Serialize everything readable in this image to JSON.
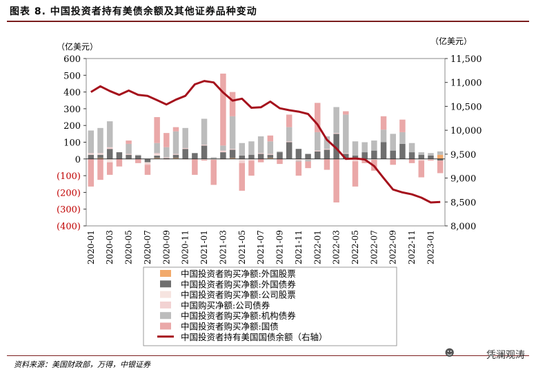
{
  "header": {
    "title": "图表 8. 中国投资者持有美债余额及其他证券品种变动"
  },
  "footer": {
    "source": "资料来源：美国财政部，万得，中银证券",
    "watermark": "凭澜观涛"
  },
  "colors": {
    "foreign_equity": "#f2a96b",
    "foreign_bonds": "#6f6f6f",
    "corp_equity": "#f6e4e0",
    "corp_bonds": "#f2d2d2",
    "agency_bonds": "#bcbcbc",
    "treasury": "#eaa8a8",
    "holdings_line": "#a5111c",
    "axis_frame": "#888888",
    "negative_tick": "#c00000"
  },
  "chart_data": {
    "type": "bar",
    "subtype": "stacked bar with line on secondary axis",
    "left_axis_unit": "（亿美元）",
    "right_axis_unit": "（亿美元）",
    "left_ylim": [
      -400,
      600
    ],
    "left_ticks": [
      "600",
      "500",
      "400",
      "300",
      "200",
      "100",
      "0",
      "(100)",
      "(200)",
      "(300)",
      "(400)"
    ],
    "left_tick_values": [
      600,
      500,
      400,
      300,
      200,
      100,
      0,
      -100,
      -200,
      -300,
      -400
    ],
    "right_ylim": [
      8000,
      11500
    ],
    "right_ticks": [
      "11,500",
      "11,000",
      "10,500",
      "10,000",
      "9,500",
      "9,000",
      "8,500",
      "8,000"
    ],
    "right_tick_values": [
      11500,
      11000,
      10500,
      10000,
      9500,
      9000,
      8500,
      8000
    ],
    "categories": [
      "2020-01",
      "2020-02",
      "2020-03",
      "2020-04",
      "2020-05",
      "2020-06",
      "2020-07",
      "2020-08",
      "2020-09",
      "2020-10",
      "2020-11",
      "2020-12",
      "2021-01",
      "2021-02",
      "2021-03",
      "2021-04",
      "2021-05",
      "2021-06",
      "2021-07",
      "2021-08",
      "2021-09",
      "2021-10",
      "2021-11",
      "2021-12",
      "2022-01",
      "2022-02",
      "2022-03",
      "2022-04",
      "2022-05",
      "2022-06",
      "2022-07",
      "2022-08",
      "2022-09",
      "2022-10",
      "2022-11",
      "2022-12",
      "2023-01",
      "2023-02"
    ],
    "x_tick_labels": [
      "2020-01",
      "2020-03",
      "2020-05",
      "2020-07",
      "2020-09",
      "2020-11",
      "2021-01",
      "2021-03",
      "2021-05",
      "2021-07",
      "2021-09",
      "2021-11",
      "2022-01",
      "2022-03",
      "2022-05",
      "2022-07",
      "2022-09",
      "2022-11",
      "2023-01"
    ],
    "legend": [
      "中国投资者购买净额:外国股票",
      "中国投资者购买净额:外国债券",
      "中国投资者购买净额:公司股票",
      "中国购买净额:公司债券",
      "中国投资者购买净额:机构债券",
      "中国投资者购买净额:国债",
      "中国投资者持有美国国债余额（右轴）"
    ],
    "series": [
      {
        "name": "中国投资者购买净额:外国股票",
        "key": "foreign_equity",
        "axis": "left",
        "values": [
          0,
          5,
          0,
          0,
          0,
          0,
          0,
          5,
          0,
          5,
          0,
          0,
          0,
          0,
          0,
          5,
          0,
          0,
          0,
          5,
          0,
          0,
          0,
          0,
          0,
          0,
          0,
          0,
          0,
          0,
          0,
          0,
          0,
          0,
          0,
          0,
          0,
          25
        ]
      },
      {
        "name": "中国投资者购买净额:外国债券",
        "key": "foreign_bonds",
        "axis": "left",
        "values": [
          25,
          20,
          60,
          40,
          25,
          20,
          -20,
          15,
          5,
          20,
          60,
          35,
          80,
          0,
          40,
          50,
          20,
          25,
          30,
          20,
          40,
          100,
          60,
          30,
          45,
          55,
          150,
          30,
          20,
          40,
          50,
          100,
          50,
          90,
          40,
          25,
          20,
          -10
        ]
      },
      {
        "name": "中国投资者购买净额:公司股票",
        "key": "corp_equity",
        "axis": "left",
        "values": [
          5,
          5,
          -20,
          0,
          -5,
          0,
          -5,
          5,
          -5,
          0,
          -5,
          0,
          -5,
          -5,
          -5,
          0,
          -10,
          -5,
          0,
          0,
          0,
          0,
          -5,
          -5,
          0,
          0,
          0,
          0,
          -5,
          -5,
          -5,
          0,
          0,
          0,
          0,
          -5,
          -5,
          0
        ]
      },
      {
        "name": "中国购买净额:公司债券",
        "key": "corp_bonds",
        "axis": "left",
        "values": [
          5,
          5,
          10,
          0,
          5,
          0,
          -10,
          10,
          5,
          5,
          5,
          0,
          5,
          0,
          10,
          5,
          -15,
          -5,
          5,
          5,
          0,
          5,
          -5,
          0,
          5,
          5,
          5,
          5,
          -10,
          0,
          0,
          0,
          0,
          0,
          0,
          -5,
          0,
          0
        ]
      },
      {
        "name": "中国投资者购买净额:机构债券",
        "key": "agency_bonds",
        "axis": "left",
        "values": [
          135,
          150,
          155,
          0,
          60,
          5,
          0,
          60,
          60,
          135,
          120,
          0,
          155,
          10,
          30,
          195,
          75,
          80,
          100,
          75,
          5,
          85,
          -5,
          -10,
          110,
          75,
          155,
          230,
          85,
          60,
          60,
          75,
          100,
          70,
          55,
          15,
          15,
          20
        ]
      },
      {
        "name": "中国投资者购买净额:国债",
        "key": "treasury",
        "axis": "left",
        "values": [
          -165,
          -125,
          -75,
          -45,
          20,
          -25,
          -60,
          155,
          85,
          25,
          0,
          -95,
          -5,
          -150,
          430,
          145,
          -165,
          -90,
          -20,
          35,
          -30,
          75,
          -85,
          -40,
          175,
          -65,
          -260,
          20,
          -150,
          -20,
          -65,
          80,
          -35,
          75,
          -25,
          -100,
          -5,
          -75
        ]
      },
      {
        "name": "中国投资者持有美国国债余额（右轴）",
        "key": "holdings_line",
        "axis": "right",
        "type": "line",
        "values": [
          10800,
          10920,
          10820,
          10740,
          10830,
          10740,
          10720,
          10630,
          10540,
          10640,
          10720,
          10960,
          11030,
          11000,
          10790,
          10620,
          10660,
          10470,
          10480,
          10600,
          10460,
          10420,
          10390,
          10340,
          10120,
          9800,
          9620,
          9400,
          9410,
          9390,
          9250,
          9000,
          8760,
          8700,
          8660,
          8590,
          8490,
          8500
        ]
      }
    ]
  }
}
